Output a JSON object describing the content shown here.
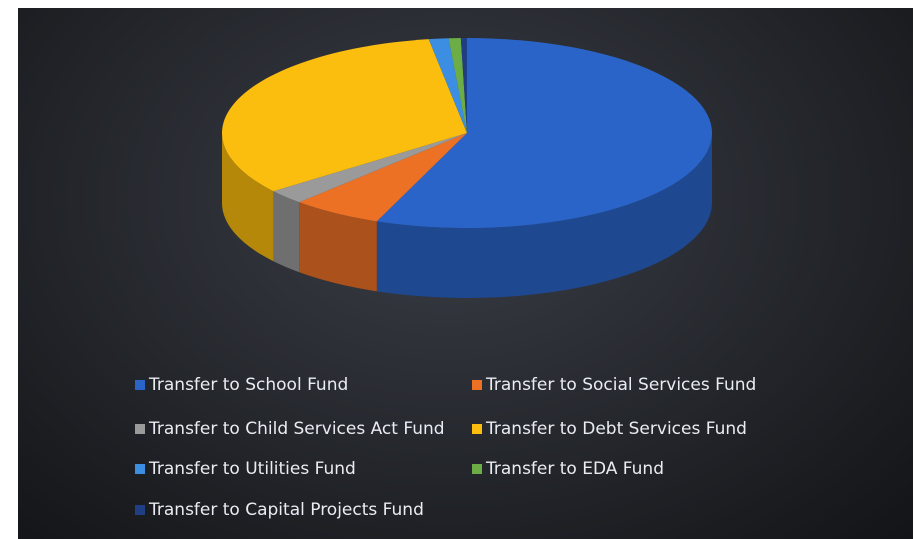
{
  "chart_data": {
    "type": "pie",
    "style": "3d",
    "title": "",
    "series": [
      {
        "values": [
          56,
          6,
          2.5,
          33,
          1.3,
          0.8,
          0.4
        ],
        "labels": [
          "Transfer to School Fund",
          "Transfer to Social Services Fund",
          "Transfer to Child Services Act Fund",
          "Transfer to Debt Services Fund",
          "Transfer to Utilities Fund",
          "Transfer to EDA Fund",
          "Transfer to Capital Projects Fund"
        ]
      }
    ],
    "colors": [
      "#2a64c8",
      "#ed7125",
      "#9a9a9a",
      "#fbbd0e",
      "#3b8ee2",
      "#6cad46",
      "#1f3e84"
    ],
    "legend_position": "bottom"
  },
  "legend": [
    {
      "label": "Transfer to School Fund",
      "color": "#2a64c8"
    },
    {
      "label": "Transfer to Social Services Fund",
      "color": "#ed7125"
    },
    {
      "label": "Transfer to Child Services Act Fund",
      "color": "#9a9a9a"
    },
    {
      "label": "Transfer to Debt Services Fund",
      "color": "#fbbd0e"
    },
    {
      "label": "Transfer to Utilities Fund",
      "color": "#3b8ee2"
    },
    {
      "label": "Transfer to EDA Fund",
      "color": "#6cad46"
    },
    {
      "label": "Transfer to Capital Projects Fund",
      "color": "#1f3e84"
    }
  ]
}
